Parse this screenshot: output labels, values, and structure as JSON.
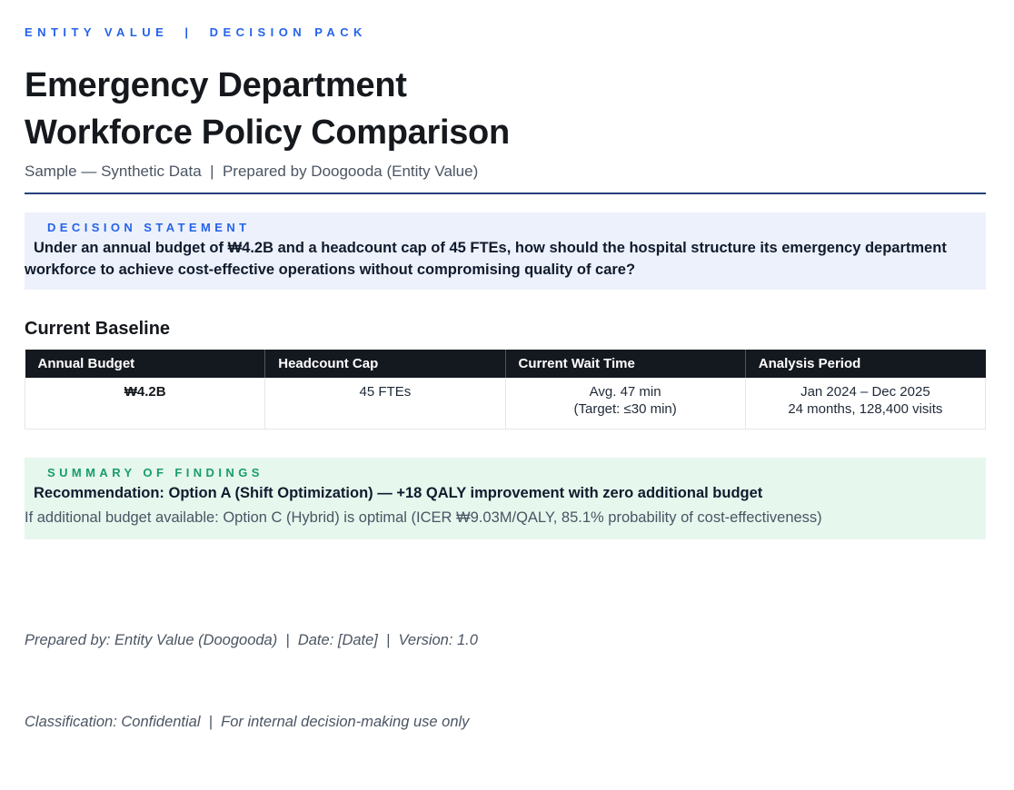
{
  "header": {
    "kicker": "ENTITY VALUE  |  DECISION PACK",
    "title_line1": "Emergency Department",
    "title_line2": "Workforce Policy Comparison",
    "subtitle": "Sample — Synthetic Data  |  Prepared by Doogooda (Entity Value)"
  },
  "decision": {
    "label": "DECISION STATEMENT",
    "text": "Under an annual budget of ₩4.2B and a headcount cap of 45 FTEs, how should the hospital structure its emergency department workforce to achieve cost-effective operations without compromising quality of care?"
  },
  "baseline": {
    "heading": "Current Baseline",
    "table": {
      "headers": [
        "Annual Budget",
        "Headcount Cap",
        "Current Wait Time",
        "Analysis Period"
      ],
      "row": {
        "annual_budget": "₩4.2B",
        "headcount_cap": "45 FTEs",
        "wait_time_line1": "Avg. 47 min",
        "wait_time_line2": "(Target: ≤30 min)",
        "period_line1": "Jan 2024 – Dec 2025",
        "period_line2": "24 months, 128,400 visits"
      }
    }
  },
  "summary": {
    "label": "SUMMARY OF FINDINGS",
    "recommendation": "Recommendation: Option A (Shift Optimization) — +18 QALY improvement with zero additional budget",
    "note": "If additional budget available: Option C (Hybrid) is optimal (ICER ₩9.03M/QALY, 85.1% probability of cost-effectiveness)"
  },
  "footer": {
    "line1": "Prepared by: Entity Value (Doogooda)  |  Date: [Date]  |  Version: 1.0",
    "line2": "Classification: Confidential  |  For internal decision-making use only"
  },
  "colors": {
    "accent_blue": "#2563eb",
    "rule_navy": "#26407c",
    "decision_box_bg": "#edf1fb",
    "summary_box_bg": "#e6f7ee",
    "summary_label_green": "#189c6c",
    "table_header_bg": "#14181f",
    "muted_text": "#4b5563"
  }
}
